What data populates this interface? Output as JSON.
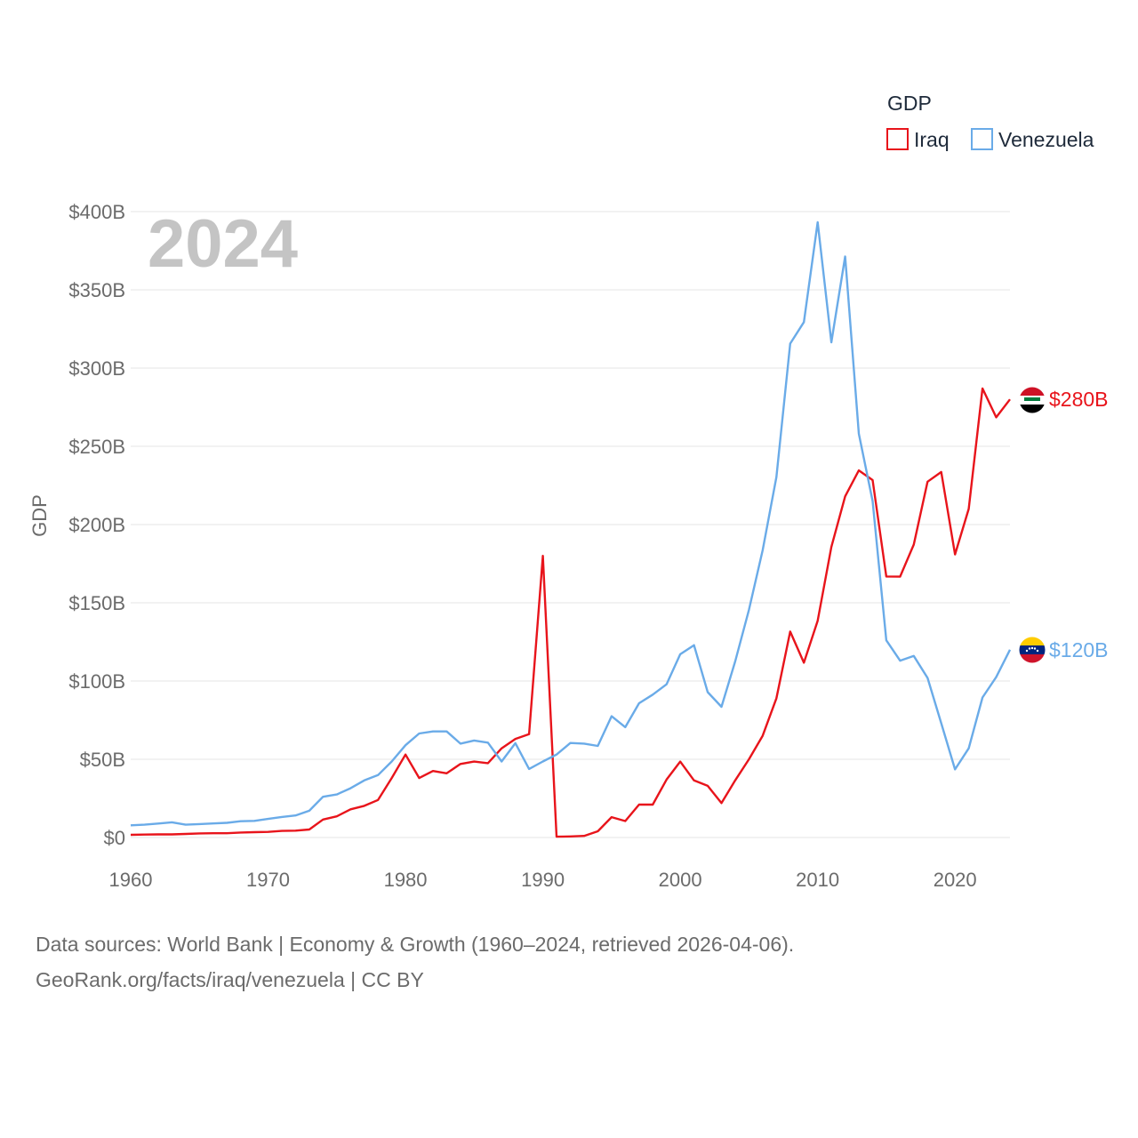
{
  "chart_data": {
    "type": "line",
    "title": "GDP",
    "year_label": "2024",
    "ylabel": "GDP",
    "xlabel": "",
    "xlim": [
      1960,
      2024
    ],
    "ylim": [
      0,
      400
    ],
    "y_unit": "billions USD",
    "y_ticks": [
      0,
      50,
      100,
      150,
      200,
      250,
      300,
      350,
      400
    ],
    "y_tick_labels": [
      "$0",
      "$50B",
      "$100B",
      "$150B",
      "$200B",
      "$250B",
      "$300B",
      "$350B",
      "$400B"
    ],
    "x_ticks": [
      1960,
      1970,
      1980,
      1990,
      2000,
      2010,
      2020
    ],
    "x_tick_labels": [
      "1960",
      "1970",
      "1980",
      "1990",
      "2000",
      "2010",
      "2020"
    ],
    "legend_title": "GDP",
    "legend_position": "top-right",
    "series": [
      {
        "name": "Iraq",
        "color": "#e8141b",
        "end_label": "$280B",
        "flag_icon": "iraq-flag-icon",
        "x": [
          1960,
          1961,
          1962,
          1963,
          1964,
          1965,
          1966,
          1967,
          1968,
          1969,
          1970,
          1971,
          1972,
          1973,
          1974,
          1975,
          1976,
          1977,
          1978,
          1979,
          1980,
          1981,
          1982,
          1983,
          1984,
          1985,
          1986,
          1987,
          1988,
          1989,
          1990,
          1991,
          1992,
          1993,
          1994,
          1995,
          1996,
          1997,
          1998,
          1999,
          2000,
          2001,
          2002,
          2003,
          2004,
          2005,
          2006,
          2007,
          2008,
          2009,
          2010,
          2011,
          2012,
          2013,
          2014,
          2015,
          2016,
          2017,
          2018,
          2019,
          2020,
          2021,
          2022,
          2023,
          2024
        ],
        "values": [
          1.7,
          1.9,
          2.0,
          2.0,
          2.3,
          2.6,
          2.7,
          2.7,
          3.2,
          3.4,
          3.6,
          4.2,
          4.4,
          5.1,
          11.5,
          13.5,
          18.0,
          20.2,
          24.0,
          38.0,
          53.0,
          38.0,
          42.5,
          41.0,
          47.0,
          48.5,
          47.5,
          57.0,
          63.0,
          66.0,
          180.0,
          0.5,
          0.7,
          1.0,
          4.0,
          13.0,
          10.5,
          21.0,
          21.0,
          37.0,
          48.5,
          36.5,
          33.0,
          22.0,
          36.5,
          50.0,
          65.0,
          89.0,
          131.6,
          111.7,
          138.5,
          185.7,
          218.0,
          234.6,
          228.4,
          166.8,
          166.7,
          187.2,
          227.4,
          233.6,
          180.9,
          210.0,
          287.0,
          268.5,
          280.0
        ]
      },
      {
        "name": "Venezuela",
        "color": "#6aabe8",
        "end_label": "$120B",
        "flag_icon": "venezuela-flag-icon",
        "x": [
          1960,
          1961,
          1962,
          1963,
          1964,
          1965,
          1966,
          1967,
          1968,
          1969,
          1970,
          1971,
          1972,
          1973,
          1974,
          1975,
          1976,
          1977,
          1978,
          1979,
          1980,
          1981,
          1982,
          1983,
          1984,
          1985,
          1986,
          1987,
          1988,
          1989,
          1990,
          1991,
          1992,
          1993,
          1994,
          1995,
          1996,
          1997,
          1998,
          1999,
          2000,
          2001,
          2002,
          2003,
          2004,
          2005,
          2006,
          2007,
          2008,
          2009,
          2010,
          2011,
          2012,
          2013,
          2014,
          2015,
          2016,
          2017,
          2018,
          2019,
          2020,
          2021,
          2022,
          2023,
          2024
        ],
        "values": [
          7.8,
          8.2,
          8.9,
          9.7,
          8.2,
          8.6,
          9.0,
          9.4,
          10.4,
          10.6,
          11.9,
          13.1,
          14.1,
          17.1,
          26.0,
          27.5,
          31.5,
          36.5,
          39.9,
          48.6,
          59.0,
          66.5,
          67.8,
          67.8,
          60.0,
          62.0,
          60.6,
          48.6,
          60.3,
          43.8,
          48.6,
          53.0,
          60.4,
          60.0,
          58.5,
          77.5,
          70.5,
          85.8,
          91.3,
          97.9,
          117.1,
          122.9,
          92.9,
          83.5,
          112.5,
          145.5,
          183.5,
          230.4,
          315.6,
          329.4,
          393.2,
          316.5,
          371.3,
          258.0,
          215.0,
          126.0,
          113.0,
          116.0,
          102.0,
          73.0,
          43.5,
          57.0,
          89.5,
          102.5,
          120.0
        ]
      }
    ]
  },
  "footer": {
    "line1": "Data sources: World Bank | Economy & Growth (1960–2024, retrieved 2026-04-06).",
    "line2": "GeoRank.org/facts/iraq/venezuela | CC BY"
  }
}
